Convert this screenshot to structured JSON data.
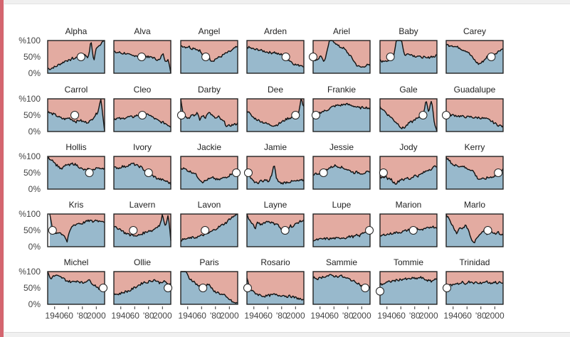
{
  "chart_data": {
    "type": "area",
    "description_free": true,
    "x_range": [
      1930,
      2012
    ],
    "y_range": [
      0,
      100
    ],
    "y_ticks": [
      "%100",
      "50%",
      "0%"
    ],
    "x_ticks": [
      {
        "year": 1940,
        "label": "1940"
      },
      {
        "year": 1960,
        "label": "60"
      },
      {
        "year": 1980,
        "label": "'80"
      },
      {
        "year": 2000,
        "label": "2000"
      }
    ],
    "colors": {
      "upper": "#e3aba1",
      "lower": "#98b9cc",
      "line": "#111111",
      "marker": "#ffffff",
      "frame": "#222222"
    },
    "panels": [
      {
        "name": "Alpha",
        "start": 1930,
        "values": [
          15,
          13,
          18,
          20,
          26,
          30,
          35,
          40,
          38,
          46,
          44,
          52,
          48,
          57,
          55,
          48,
          100,
          35,
          80,
          85,
          95,
          100
        ],
        "marker": [
          1978,
          50
        ]
      },
      {
        "name": "Alva",
        "start": 1930,
        "values": [
          65,
          63,
          64,
          60,
          62,
          58,
          55,
          53,
          55,
          52,
          50,
          55,
          52,
          48,
          50,
          45,
          42,
          40,
          62,
          38,
          42,
          0
        ],
        "marker": [
          1970,
          50
        ]
      },
      {
        "name": "Angel",
        "start": 1930,
        "values": [
          85,
          82,
          80,
          82,
          75,
          78,
          72,
          70,
          55,
          52,
          60,
          40,
          38,
          45,
          48,
          52,
          58,
          62,
          66,
          70,
          78,
          80
        ],
        "marker": [
          1966,
          50
        ]
      },
      {
        "name": "Arden",
        "start": 1930,
        "values": [
          80,
          78,
          75,
          72,
          73,
          70,
          68,
          66,
          64,
          62,
          65,
          60,
          57,
          58,
          55,
          42,
          38,
          30,
          26,
          24,
          25,
          22
        ],
        "marker": [
          1986,
          50
        ]
      },
      {
        "name": "Ariel",
        "start": 1930,
        "values": [
          45,
          40,
          45,
          55,
          30,
          60,
          100,
          100,
          95,
          85,
          80,
          78,
          70,
          60,
          50,
          38,
          25,
          20,
          18,
          22,
          25,
          23
        ],
        "marker": [
          1930,
          50
        ]
      },
      {
        "name": "Baby",
        "start": 1930,
        "values": [
          40,
          35,
          40,
          38,
          45,
          50,
          100,
          100,
          100,
          55,
          58,
          60,
          55,
          52,
          53,
          48,
          50,
          45,
          48,
          52,
          50,
          55
        ],
        "marker": [
          1945,
          50
        ]
      },
      {
        "name": "Carey",
        "start": 1930,
        "values": [
          88,
          85,
          86,
          82,
          80,
          78,
          72,
          70,
          65,
          55,
          45,
          35,
          28,
          32,
          40,
          50,
          55,
          50,
          60,
          65,
          72,
          75
        ],
        "marker": [
          1995,
          50
        ]
      },
      {
        "name": "Carrol",
        "start": 1930,
        "values": [
          60,
          55,
          52,
          45,
          40,
          38,
          42,
          35,
          30,
          35,
          30,
          28,
          32,
          45,
          58,
          100,
          0
        ],
        "marker": [
          1969,
          50
        ]
      },
      {
        "name": "Cleo",
        "start": 1930,
        "values": [
          38,
          40,
          40,
          38,
          42,
          44,
          45,
          44,
          48,
          50,
          48,
          55,
          50,
          52,
          45,
          40,
          35,
          30,
          28,
          25,
          20,
          15
        ],
        "marker": [
          1971,
          50
        ]
      },
      {
        "name": "Darby",
        "start": 1930,
        "values": [
          100,
          50,
          45,
          40,
          55,
          48,
          58,
          35,
          50,
          40,
          60,
          55,
          45,
          40,
          45,
          35,
          30,
          15,
          18,
          20,
          22,
          25
        ],
        "marker": [
          1931,
          50
        ]
      },
      {
        "name": "Dee",
        "start": 1930,
        "values": [
          65,
          55,
          45,
          40,
          35,
          32,
          28,
          25,
          22,
          20,
          18,
          20,
          25,
          30,
          35,
          40,
          42,
          45,
          48,
          50,
          100,
          75
        ],
        "marker": [
          2000,
          50
        ]
      },
      {
        "name": "Frankie",
        "start": 1930,
        "values": [
          45,
          50,
          55,
          60,
          62,
          65,
          70,
          75,
          78,
          80,
          80,
          82,
          84,
          82,
          80,
          78,
          75,
          72,
          73,
          74,
          73,
          70
        ],
        "marker": [
          1934,
          50
        ]
      },
      {
        "name": "Gale",
        "start": 1930,
        "values": [
          75,
          68,
          60,
          50,
          45,
          35,
          28,
          20,
          10,
          12,
          20,
          28,
          30,
          38,
          40,
          45,
          50,
          100,
          55,
          100,
          30,
          0
        ],
        "marker": [
          1992,
          50
        ]
      },
      {
        "name": "Guadalupe",
        "start": 1930,
        "values": [
          55,
          52,
          50,
          50,
          48,
          47,
          46,
          45,
          44,
          45,
          43,
          42,
          43,
          41,
          40,
          38,
          35,
          30,
          25,
          20,
          18,
          15
        ],
        "marker": [
          1930,
          50
        ]
      },
      {
        "name": "Hollis",
        "start": 1930,
        "values": [
          95,
          92,
          88,
          75,
          70,
          60,
          68,
          75,
          72,
          78,
          76,
          72,
          65,
          60,
          58,
          62,
          55,
          60,
          66,
          62,
          65,
          64
        ],
        "marker": [
          1990,
          50
        ]
      },
      {
        "name": "Ivory",
        "start": 1930,
        "values": [
          65,
          66,
          64,
          70,
          68,
          72,
          75,
          78,
          74,
          70,
          68,
          60,
          52,
          48,
          42,
          38,
          32,
          30,
          28,
          25,
          22,
          15
        ],
        "marker": [
          1980,
          50
        ]
      },
      {
        "name": "Jackie",
        "start": 1930,
        "values": [
          65,
          63,
          60,
          55,
          52,
          50,
          40,
          30,
          22,
          25,
          30,
          32,
          35,
          30,
          28,
          32,
          35,
          38,
          42,
          50,
          55,
          50
        ],
        "marker": [
          2010,
          50
        ]
      },
      {
        "name": "Jamie",
        "start": 1930,
        "values": [
          50,
          40,
          30,
          20,
          18,
          25,
          22,
          30,
          20,
          40,
          75,
          30,
          20,
          18,
          20,
          22,
          22,
          24,
          24,
          25,
          26,
          28
        ],
        "marker": [
          1932,
          50
        ]
      },
      {
        "name": "Jessie",
        "start": 1930,
        "values": [
          45,
          47,
          48,
          50,
          55,
          60,
          65,
          68,
          72,
          70,
          68,
          65,
          62,
          58,
          55,
          50,
          52,
          50,
          48,
          50,
          52,
          50
        ],
        "marker": [
          1945,
          50
        ]
      },
      {
        "name": "Jody",
        "start": 1930,
        "values": [
          38,
          35,
          40,
          30,
          32,
          20,
          18,
          25,
          32,
          28,
          35,
          30,
          38,
          42,
          40,
          45,
          50,
          55,
          60,
          62,
          68,
          72
        ],
        "marker": [
          1935,
          50
        ]
      },
      {
        "name": "Kerry",
        "start": 1930,
        "values": [
          95,
          88,
          80,
          70,
          75,
          68,
          72,
          65,
          62,
          60,
          55,
          40,
          30,
          32,
          30,
          34,
          36,
          38,
          40,
          45,
          55,
          60
        ],
        "marker": [
          2005,
          50
        ]
      },
      {
        "name": "Kris",
        "start": 1933,
        "values": [
          100,
          50,
          40,
          45,
          40,
          35,
          15,
          50,
          65,
          68,
          72,
          70,
          75,
          78,
          80,
          76,
          82,
          78,
          80,
          76
        ],
        "marker": [
          1937,
          50
        ]
      },
      {
        "name": "Lavern",
        "start": 1930,
        "values": [
          60,
          58,
          55,
          50,
          42,
          40,
          35,
          38,
          30,
          35,
          38,
          42,
          45,
          50,
          48,
          55,
          62,
          65,
          100,
          60,
          100,
          20
        ],
        "marker": [
          1958,
          50
        ]
      },
      {
        "name": "Lavon",
        "start": 1930,
        "values": [
          20,
          22,
          24,
          25,
          28,
          27,
          30,
          32,
          35,
          38,
          40,
          45,
          50,
          55,
          60,
          65,
          70,
          75,
          85,
          90,
          95,
          100
        ],
        "marker": [
          1965,
          50
        ]
      },
      {
        "name": "Layne",
        "start": 1930,
        "values": [
          100,
          80,
          70,
          55,
          75,
          68,
          72,
          76,
          78,
          74,
          70,
          72,
          60,
          50,
          48,
          55,
          65,
          60,
          70,
          75,
          78,
          80
        ],
        "marker": [
          1985,
          50
        ]
      },
      {
        "name": "Lupe",
        "start": 1930,
        "values": [
          20,
          20,
          22,
          23,
          24,
          25,
          24,
          25,
          26,
          25,
          27,
          28,
          27,
          30,
          32,
          30,
          35,
          32,
          40,
          45,
          48,
          55
        ],
        "marker": [
          2011,
          50
        ]
      },
      {
        "name": "Marion",
        "start": 1930,
        "values": [
          32,
          35,
          38,
          38,
          40,
          42,
          43,
          44,
          45,
          48,
          50,
          52,
          55,
          58,
          55,
          50,
          52,
          55,
          58,
          62,
          60,
          58
        ],
        "marker": [
          1978,
          50
        ]
      },
      {
        "name": "Marlo",
        "start": 1930,
        "values": [
          100,
          85,
          70,
          55,
          40,
          60,
          55,
          65,
          55,
          30,
          10,
          20,
          35,
          45,
          50,
          40,
          50,
          45,
          40,
          45,
          38,
          35
        ],
        "marker": [
          1990,
          50
        ]
      },
      {
        "name": "Michel",
        "start": 1930,
        "values": [
          100,
          78,
          85,
          88,
          85,
          82,
          78,
          72,
          70,
          68,
          70,
          72,
          68,
          65,
          70,
          75,
          68,
          60,
          55,
          48,
          45,
          50
        ],
        "marker": [
          2010,
          50
        ]
      },
      {
        "name": "Ollie",
        "start": 1930,
        "values": [
          35,
          30,
          32,
          35,
          38,
          40,
          42,
          48,
          52,
          58,
          62,
          68,
          66,
          70,
          72,
          75,
          70,
          65,
          70,
          68,
          62,
          60
        ],
        "marker": [
          2008,
          50
        ]
      },
      {
        "name": "Paris",
        "start": 1930,
        "values": [
          100,
          100,
          100,
          80,
          75,
          68,
          60,
          55,
          50,
          58,
          62,
          55,
          40,
          38,
          35,
          30,
          28,
          20,
          15,
          8,
          3,
          5
        ],
        "marker": [
          1962,
          50
        ]
      },
      {
        "name": "Rosario",
        "start": 1930,
        "values": [
          80,
          50,
          40,
          35,
          30,
          28,
          25,
          25,
          27,
          28,
          30,
          28,
          27,
          28,
          26,
          24,
          25,
          22,
          20,
          18,
          15,
          10
        ],
        "marker": [
          1931,
          50
        ]
      },
      {
        "name": "Sammie",
        "start": 1930,
        "values": [
          82,
          80,
          78,
          82,
          85,
          86,
          88,
          88,
          86,
          85,
          88,
          84,
          80,
          78,
          75,
          70,
          68,
          62,
          55,
          50,
          48,
          55
        ],
        "marker": [
          2005,
          50
        ]
      },
      {
        "name": "Tommie",
        "start": 1930,
        "values": [
          60,
          62,
          65,
          68,
          70,
          72,
          73,
          75,
          76,
          78,
          76,
          78,
          80,
          78,
          80,
          82,
          78,
          75,
          72,
          70,
          75,
          82
        ],
        "marker": [
          1930,
          40
        ]
      },
      {
        "name": "Trinidad",
        "start": 1930,
        "values": [
          55,
          60,
          58,
          62,
          65,
          62,
          68,
          60,
          70,
          66,
          64,
          68,
          62,
          66,
          68,
          70,
          64,
          66,
          68,
          65,
          67,
          62
        ],
        "marker": [
          1931,
          50
        ]
      }
    ]
  }
}
